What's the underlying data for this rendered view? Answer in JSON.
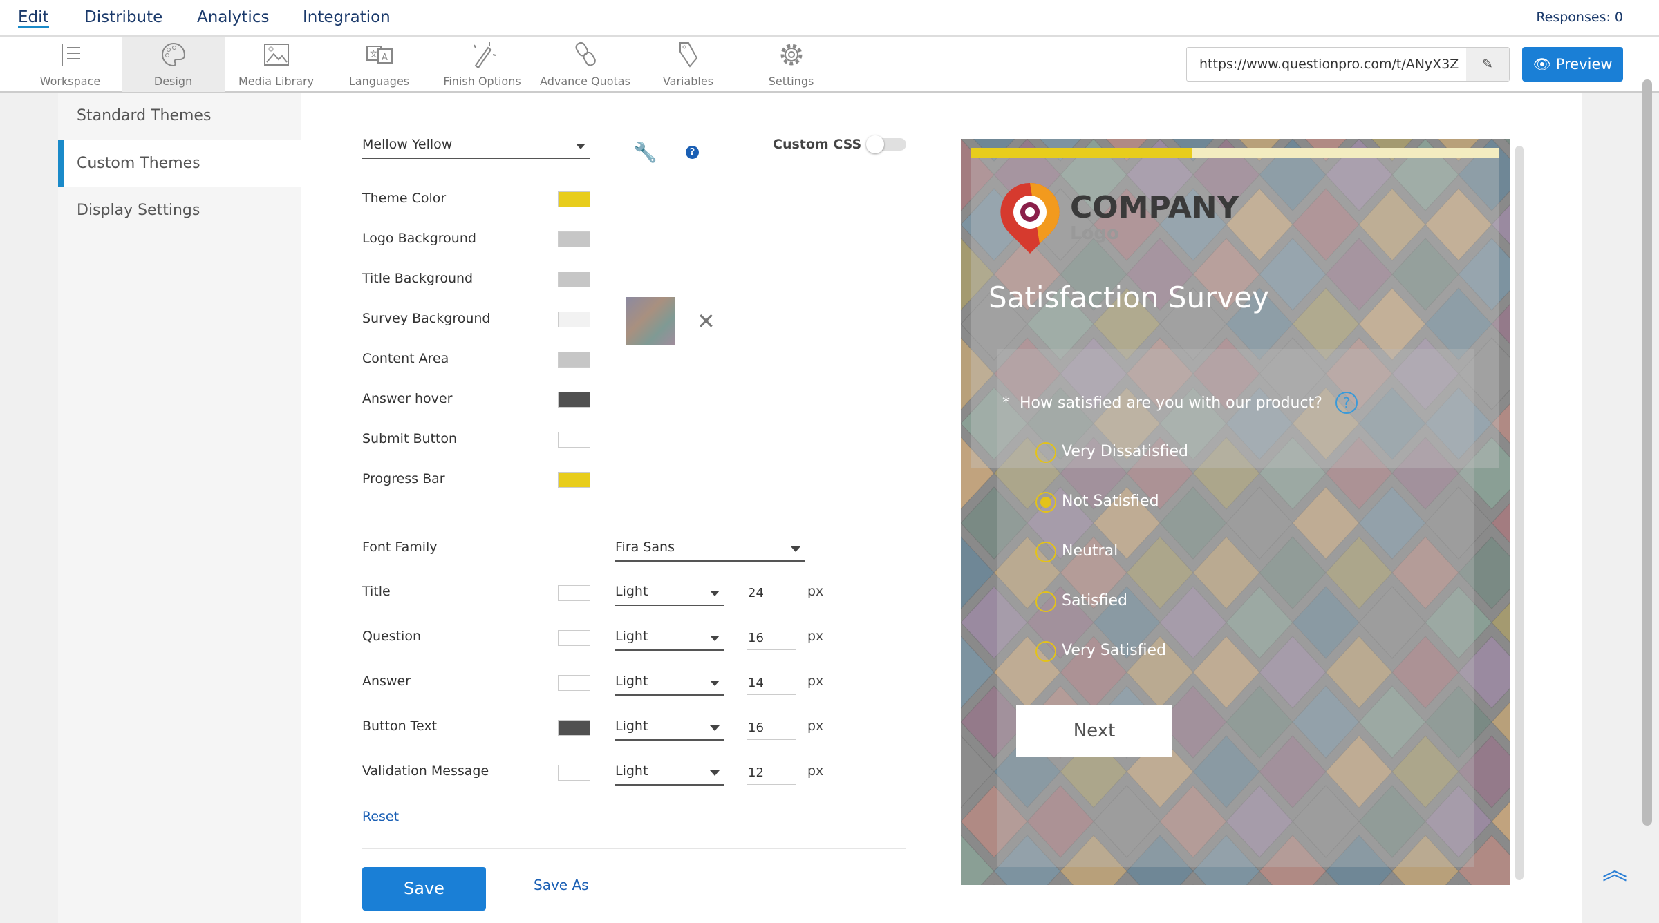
{
  "topnav": {
    "tabs": [
      "Edit",
      "Distribute",
      "Analytics",
      "Integration"
    ],
    "active": "Edit",
    "responses": "Responses: 0"
  },
  "toolbar": {
    "items": [
      "Workspace",
      "Design",
      "Media Library",
      "Languages",
      "Finish Options",
      "Advance Quotas",
      "Variables",
      "Settings"
    ],
    "selected": "Design",
    "url": "https://www.questionpro.com/t/ANyX3Z",
    "preview": "Preview"
  },
  "sidebar": {
    "items": [
      "Standard Themes",
      "Custom Themes",
      "Display Settings"
    ],
    "selected": "Custom Themes"
  },
  "theme": {
    "name": "Mellow Yellow",
    "custom_css_label": "Custom CSS",
    "custom_css_on": false,
    "colors": [
      {
        "label": "Theme Color",
        "color": "#e8cd1c"
      },
      {
        "label": "Logo Background",
        "color": "#c6c6c6"
      },
      {
        "label": "Title Background",
        "color": "#c6c6c6"
      },
      {
        "label": "Survey Background",
        "color": "#f2f2f2"
      },
      {
        "label": "Content Area",
        "color": "#c6c6c6"
      },
      {
        "label": "Answer hover",
        "color": "#505050"
      },
      {
        "label": "Submit Button",
        "color": "#ffffff"
      },
      {
        "label": "Progress Bar",
        "color": "#e8cd1c"
      }
    ],
    "font_family_label": "Font Family",
    "font_family": "Fira Sans",
    "fonts": [
      {
        "label": "Title",
        "color": "#ffffff",
        "weight": "Light",
        "size": "24",
        "unit": "px"
      },
      {
        "label": "Question",
        "color": "#ffffff",
        "weight": "Light",
        "size": "16",
        "unit": "px"
      },
      {
        "label": "Answer",
        "color": "#ffffff",
        "weight": "Light",
        "size": "14",
        "unit": "px"
      },
      {
        "label": "Button Text",
        "color": "#505050",
        "weight": "Light",
        "size": "16",
        "unit": "px"
      },
      {
        "label": "Validation Message",
        "color": "#ffffff",
        "weight": "Light",
        "size": "12",
        "unit": "px"
      }
    ],
    "reset": "Reset",
    "save": "Save",
    "save_as": "Save As"
  },
  "preview": {
    "logo_main": "COMPANY",
    "logo_sub": "Logo",
    "title": "Satisfaction Survey",
    "question": "How satisfied are you with our product?",
    "required_mark": "*",
    "options": [
      "Very Dissatisfied",
      "Not Satisfied",
      "Neutral",
      "Satisfied",
      "Very Satisfied"
    ],
    "selected": "Not Satisfied",
    "next": "Next",
    "progress_color": "#e8cd1c"
  }
}
